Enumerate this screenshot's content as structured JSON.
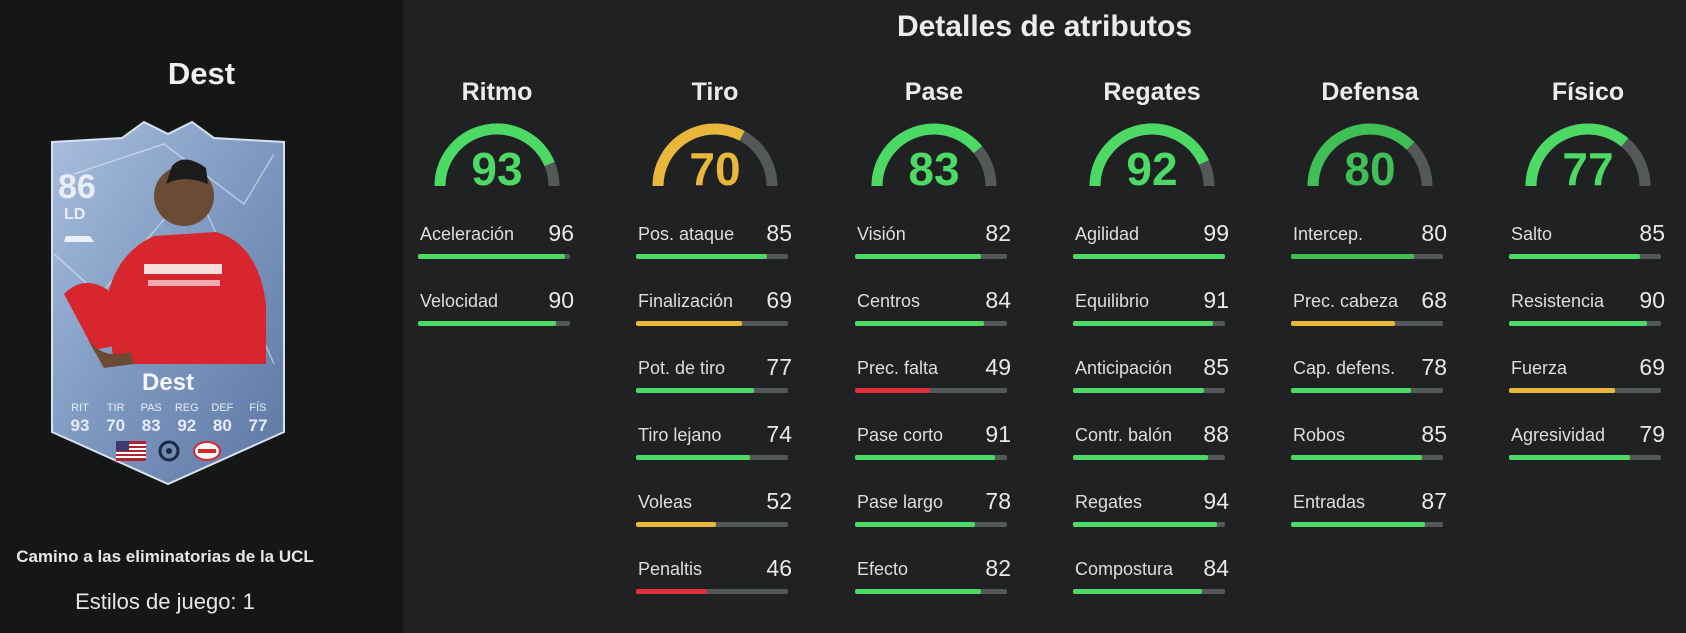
{
  "player": {
    "name": "Dest",
    "rating": "86",
    "position": "LD",
    "card_stats": [
      {
        "label": "RIT",
        "value": "93"
      },
      {
        "label": "TIR",
        "value": "70"
      },
      {
        "label": "PAS",
        "value": "83"
      },
      {
        "label": "REG",
        "value": "92"
      },
      {
        "label": "DEF",
        "value": "80"
      },
      {
        "label": "FÍS",
        "value": "77"
      }
    ],
    "promo": "Camino a las eliminatorias de la UCL",
    "playstyles": "Estilos de juego: 1"
  },
  "section_title": "Detalles de atributos",
  "colors": {
    "green": "#4cd964",
    "yellow": "#e8b73c",
    "red": "#e0303b",
    "track": "#555858"
  },
  "categories": [
    {
      "name": "Ritmo",
      "value": "93",
      "num": 93,
      "color": "#4cd964",
      "attrs": [
        {
          "name": "Aceleración",
          "value": "96",
          "num": 96,
          "color": "#4cd964"
        },
        {
          "name": "Velocidad",
          "value": "90",
          "num": 90,
          "color": "#4cd964"
        }
      ]
    },
    {
      "name": "Tiro",
      "value": "70",
      "num": 70,
      "color": "#e8b73c",
      "attrs": [
        {
          "name": "Pos. ataque",
          "value": "85",
          "num": 85,
          "color": "#4cd964"
        },
        {
          "name": "Finalización",
          "value": "69",
          "num": 69,
          "color": "#e8b73c"
        },
        {
          "name": "Pot. de tiro",
          "value": "77",
          "num": 77,
          "color": "#4cd964"
        },
        {
          "name": "Tiro lejano",
          "value": "74",
          "num": 74,
          "color": "#4cd964"
        },
        {
          "name": "Voleas",
          "value": "52",
          "num": 52,
          "color": "#e8b73c"
        },
        {
          "name": "Penaltis",
          "value": "46",
          "num": 46,
          "color": "#e0303b"
        }
      ]
    },
    {
      "name": "Pase",
      "value": "83",
      "num": 83,
      "color": "#4cd964",
      "attrs": [
        {
          "name": "Visión",
          "value": "82",
          "num": 82,
          "color": "#4cd964"
        },
        {
          "name": "Centros",
          "value": "84",
          "num": 84,
          "color": "#4cd964"
        },
        {
          "name": "Prec. falta",
          "value": "49",
          "num": 49,
          "color": "#e0303b"
        },
        {
          "name": "Pase corto",
          "value": "91",
          "num": 91,
          "color": "#4cd964"
        },
        {
          "name": "Pase largo",
          "value": "78",
          "num": 78,
          "color": "#4cd964"
        },
        {
          "name": "Efecto",
          "value": "82",
          "num": 82,
          "color": "#4cd964"
        }
      ]
    },
    {
      "name": "Regates",
      "value": "92",
      "num": 92,
      "color": "#4cd964",
      "attrs": [
        {
          "name": "Agilidad",
          "value": "99",
          "num": 99,
          "color": "#4cd964"
        },
        {
          "name": "Equilibrio",
          "value": "91",
          "num": 91,
          "color": "#4cd964"
        },
        {
          "name": "Anticipación",
          "value": "85",
          "num": 85,
          "color": "#4cd964"
        },
        {
          "name": "Contr. balón",
          "value": "88",
          "num": 88,
          "color": "#4cd964"
        },
        {
          "name": "Regates",
          "value": "94",
          "num": 94,
          "color": "#4cd964"
        },
        {
          "name": "Compostura",
          "value": "84",
          "num": 84,
          "color": "#4cd964"
        }
      ]
    },
    {
      "name": "Defensa",
      "value": "80",
      "num": 80,
      "color": "#3fbf55",
      "attrs": [
        {
          "name": "Intercep.",
          "value": "80",
          "num": 80,
          "color": "#3fbf55"
        },
        {
          "name": "Prec. cabeza",
          "value": "68",
          "num": 68,
          "color": "#e8b73c"
        },
        {
          "name": "Cap. defens.",
          "value": "78",
          "num": 78,
          "color": "#4cd964"
        },
        {
          "name": "Robos",
          "value": "85",
          "num": 85,
          "color": "#4cd964"
        },
        {
          "name": "Entradas",
          "value": "87",
          "num": 87,
          "color": "#4cd964"
        }
      ]
    },
    {
      "name": "Físico",
      "value": "77",
      "num": 77,
      "color": "#4cd964",
      "attrs": [
        {
          "name": "Salto",
          "value": "85",
          "num": 85,
          "color": "#4cd964"
        },
        {
          "name": "Resistencia",
          "value": "90",
          "num": 90,
          "color": "#4cd964"
        },
        {
          "name": "Fuerza",
          "value": "69",
          "num": 69,
          "color": "#e8b73c"
        },
        {
          "name": "Agresividad",
          "value": "79",
          "num": 79,
          "color": "#4cd964"
        }
      ]
    }
  ]
}
